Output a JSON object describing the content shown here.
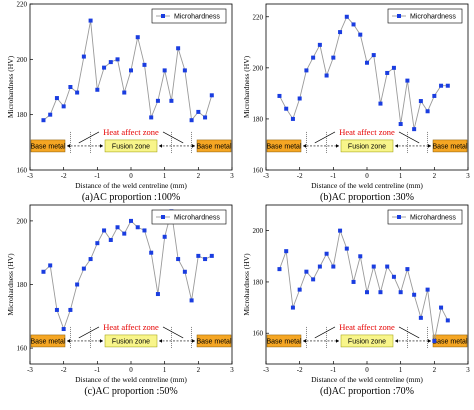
{
  "chart_data": [
    {
      "type": "line",
      "caption": "(a)AC proportion :100%",
      "xlabel": "Distance of the weld centreline (mm)",
      "ylabel": "Microhardness (HV)",
      "xlim": [
        -3,
        3
      ],
      "ylim": [
        160,
        220
      ],
      "xticks": [
        -3,
        -2,
        -1,
        0,
        1,
        2,
        3
      ],
      "yticks": [
        160,
        180,
        200,
        220
      ],
      "series": [
        {
          "name": "Microhardness",
          "x": [
            -2.6,
            -2.4,
            -2.2,
            -2.0,
            -1.8,
            -1.6,
            -1.4,
            -1.2,
            -1.0,
            -0.8,
            -0.6,
            -0.4,
            -0.2,
            0.0,
            0.2,
            0.4,
            0.6,
            0.8,
            1.0,
            1.2,
            1.4,
            1.6,
            1.8,
            2.0,
            2.2,
            2.4
          ],
          "y": [
            178,
            180,
            186,
            183,
            190,
            188,
            201,
            214,
            189,
            197,
            199,
            200,
            188,
            196,
            208,
            198,
            179,
            185,
            196,
            185,
            204,
            196,
            178,
            181,
            179,
            187
          ]
        }
      ],
      "annotations": {
        "heat_affect_zone": "Heat affect zone",
        "left_zone": "Base metal",
        "center_zone": "Fusion zone",
        "right_zone": "Base metal"
      },
      "legend_position": "top-right",
      "grid": false
    },
    {
      "type": "line",
      "caption": "(b)AC proportion :30%",
      "xlabel": "Distance of the weld centreline (mm)",
      "ylabel": "Microhardness (HV)",
      "xlim": [
        -3,
        3
      ],
      "ylim": [
        160,
        225
      ],
      "xticks": [
        -3,
        -2,
        -1,
        0,
        1,
        2,
        3
      ],
      "yticks": [
        160,
        180,
        200,
        220
      ],
      "series": [
        {
          "name": "Microhardness",
          "x": [
            -2.6,
            -2.4,
            -2.2,
            -2.0,
            -1.8,
            -1.6,
            -1.4,
            -1.2,
            -1.0,
            -0.8,
            -0.6,
            -0.4,
            -0.2,
            0.0,
            0.2,
            0.4,
            0.6,
            0.8,
            1.0,
            1.2,
            1.4,
            1.6,
            1.8,
            2.0,
            2.2,
            2.4
          ],
          "y": [
            189,
            184,
            180,
            188,
            199,
            204,
            209,
            197,
            204,
            214,
            220,
            217,
            213,
            202,
            205,
            186,
            198,
            200,
            178,
            195,
            176,
            187,
            183,
            189,
            193,
            193
          ]
        }
      ],
      "annotations": {
        "heat_affect_zone": "Heat affect zone",
        "left_zone": "Base metal",
        "center_zone": "Fusion zone",
        "right_zone": "Base metal"
      },
      "legend_position": "top-right",
      "grid": false
    },
    {
      "type": "line",
      "caption": "(c)AC proportion :50%",
      "xlabel": "Distance of the weld centreline (mm)",
      "ylabel": "Microhardness (HV)",
      "xlim": [
        -3,
        3
      ],
      "ylim": [
        155,
        205
      ],
      "xticks": [
        -3,
        -2,
        -1,
        0,
        1,
        2,
        3
      ],
      "yticks": [
        160,
        180,
        200
      ],
      "series": [
        {
          "name": "Microhardness",
          "x": [
            -2.6,
            -2.4,
            -2.2,
            -2.0,
            -1.8,
            -1.6,
            -1.4,
            -1.2,
            -1.0,
            -0.8,
            -0.6,
            -0.4,
            -0.2,
            0.0,
            0.2,
            0.4,
            0.6,
            0.8,
            1.0,
            1.2,
            1.4,
            1.6,
            1.8,
            2.0,
            2.2,
            2.4
          ],
          "y": [
            184,
            186,
            172,
            166,
            172,
            180,
            185,
            188,
            193,
            197,
            194,
            198,
            196,
            200,
            198,
            197,
            190,
            177,
            195,
            203,
            188,
            184,
            175,
            189,
            188,
            189
          ]
        }
      ],
      "annotations": {
        "heat_affect_zone": "Heat affect zone",
        "left_zone": "Base metal",
        "center_zone": "Fusion zone",
        "right_zone": "Base metal"
      },
      "legend_position": "top-right",
      "grid": false
    },
    {
      "type": "line",
      "caption": "(d)AC proportion :70%",
      "xlabel": "Distance of the weld centreline (mm)",
      "ylabel": "Microhardness (HV)",
      "xlim": [
        -3,
        3
      ],
      "ylim": [
        148,
        210
      ],
      "xticks": [
        -3,
        -2,
        -1,
        0,
        1,
        2,
        3
      ],
      "yticks": [
        160,
        180,
        200
      ],
      "series": [
        {
          "name": "Microhardness",
          "x": [
            -2.6,
            -2.4,
            -2.2,
            -2.0,
            -1.8,
            -1.6,
            -1.4,
            -1.2,
            -1.0,
            -0.8,
            -0.6,
            -0.4,
            -0.2,
            0.0,
            0.2,
            0.4,
            0.6,
            0.8,
            1.0,
            1.2,
            1.4,
            1.6,
            1.8,
            2.0,
            2.2,
            2.4
          ],
          "y": [
            185,
            192,
            170,
            177,
            184,
            181,
            186,
            191,
            186,
            200,
            193,
            180,
            190,
            176,
            186,
            176,
            186,
            182,
            176,
            185,
            175,
            166,
            177,
            157,
            170,
            165
          ]
        }
      ],
      "annotations": {
        "heat_affect_zone": "Heat affect zone",
        "left_zone": "Base metal",
        "center_zone": "Fusion zone",
        "right_zone": "Base metal"
      },
      "legend_position": "top-right",
      "grid": false
    }
  ]
}
